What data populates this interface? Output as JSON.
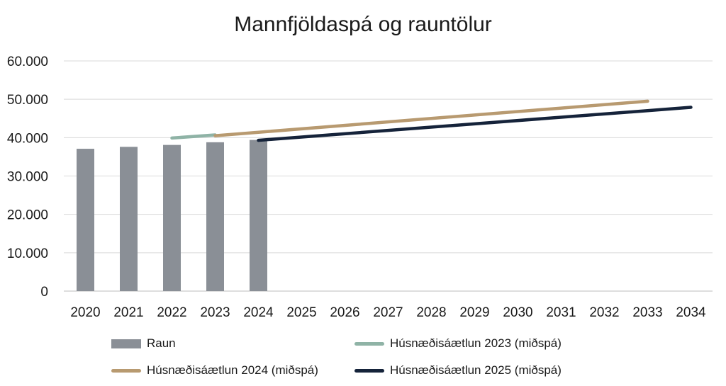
{
  "chart_data": {
    "type": "bar+line",
    "title": "Mannfjöldaspá og rauntölur",
    "x_categories": [
      "2020",
      "2021",
      "2022",
      "2023",
      "2024",
      "2025",
      "2026",
      "2027",
      "2028",
      "2029",
      "2030",
      "2031",
      "2032",
      "2033",
      "2034"
    ],
    "y_tick_labels": [
      "0",
      "10.000",
      "20.000",
      "30.000",
      "40.000",
      "50.000",
      "60.000"
    ],
    "ylim": [
      0,
      60000
    ],
    "grid": true,
    "legend_position": "bottom",
    "bar_series": {
      "name": "Raun",
      "color": "#8a8f96",
      "x": [
        "2020",
        "2021",
        "2022",
        "2023",
        "2024"
      ],
      "values": [
        37100,
        37600,
        38100,
        38800,
        39400
      ]
    },
    "line_series": [
      {
        "name": "Húsnæðisáætlun 2023 (miðspá)",
        "color": "#8fb3a6",
        "x": [
          "2022",
          "2023"
        ],
        "values": [
          39900,
          40700
        ]
      },
      {
        "name": "Húsnæðisáætlun 2024 (miðspá)",
        "color": "#b89a70",
        "x": [
          "2023",
          "2033"
        ],
        "values": [
          40500,
          49500
        ]
      },
      {
        "name": "Húsnæðisáætlun 2025 (miðspá)",
        "color": "#15233a",
        "x": [
          "2024",
          "2034"
        ],
        "values": [
          39300,
          47900
        ]
      }
    ]
  }
}
